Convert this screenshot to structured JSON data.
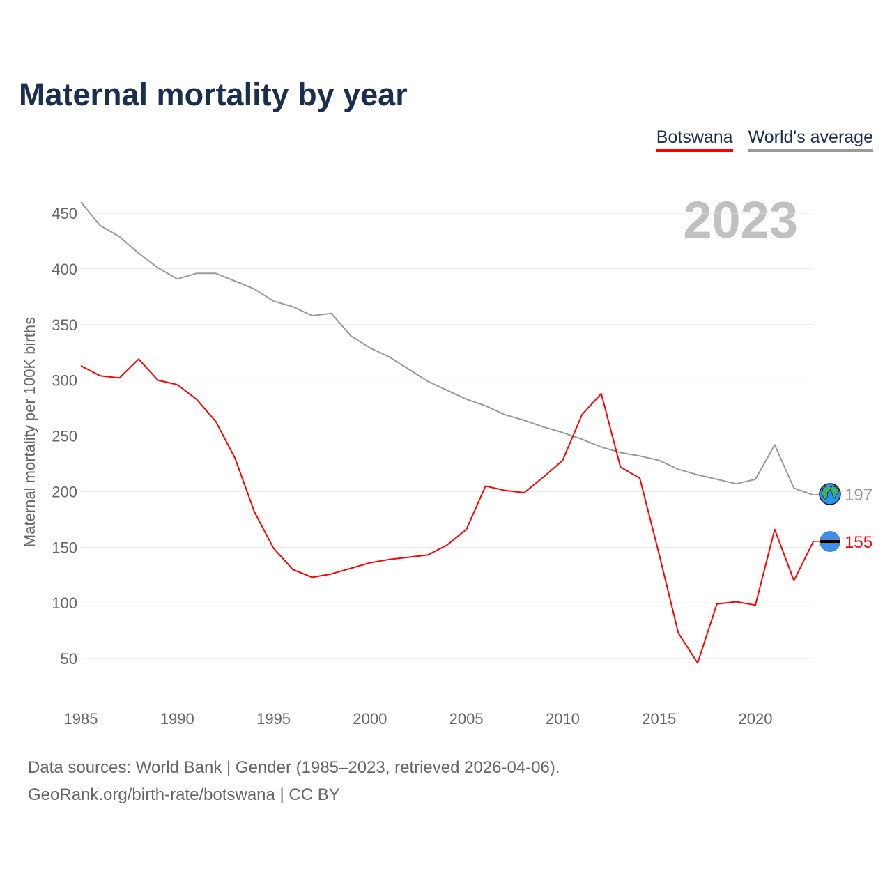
{
  "chart_data": {
    "type": "line",
    "title": "Maternal mortality by year",
    "ylabel": "Maternal mortality per 100K births",
    "xlabel": "",
    "year_watermark": "2023",
    "xlim": [
      1985,
      2023
    ],
    "ylim": [
      25,
      465
    ],
    "x_ticks": [
      1985,
      1990,
      1995,
      2000,
      2005,
      2010,
      2015,
      2020
    ],
    "y_ticks": [
      50,
      100,
      150,
      200,
      250,
      300,
      350,
      400,
      450
    ],
    "grid": true,
    "legend_position": "top-right",
    "x": [
      1985,
      1986,
      1987,
      1988,
      1989,
      1990,
      1991,
      1992,
      1993,
      1994,
      1995,
      1996,
      1997,
      1998,
      1999,
      2000,
      2001,
      2002,
      2003,
      2004,
      2005,
      2006,
      2007,
      2008,
      2009,
      2010,
      2011,
      2012,
      2013,
      2014,
      2015,
      2016,
      2017,
      2018,
      2019,
      2020,
      2021,
      2022,
      2023
    ],
    "series": [
      {
        "name": "Botswana",
        "color": "#ff0000",
        "end_label": "155",
        "icon": "botswana-flag",
        "values": [
          313,
          304,
          302,
          319,
          300,
          296,
          283,
          263,
          230,
          182,
          149,
          130,
          123,
          126,
          131,
          136,
          139,
          141,
          143,
          152,
          166,
          205,
          201,
          199,
          213,
          228,
          269,
          288,
          222,
          212,
          144,
          73,
          46,
          99,
          101,
          98,
          166,
          120,
          155
        ]
      },
      {
        "name": "World's average",
        "color": "#999999",
        "end_label": "197",
        "icon": "globe",
        "values": [
          460,
          439,
          429,
          414,
          401,
          391,
          396,
          396,
          389,
          382,
          371,
          366,
          358,
          360,
          340,
          329,
          321,
          310,
          299,
          291,
          283,
          277,
          269,
          264,
          258,
          253,
          247,
          240,
          235,
          232,
          228,
          220,
          215,
          211,
          207,
          211,
          242,
          203,
          197
        ]
      }
    ]
  },
  "footer": {
    "line1": "Data sources: World Bank | Gender (1985–2023, retrieved 2026-04-06).",
    "line2": "GeoRank.org/birth-rate/botswana | CC BY"
  }
}
